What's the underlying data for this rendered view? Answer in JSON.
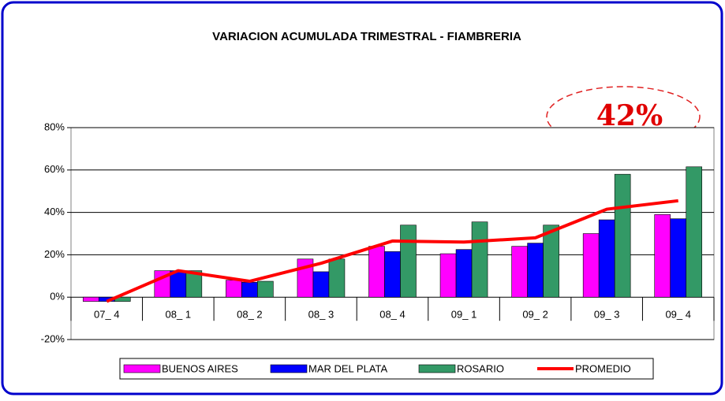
{
  "chart_data": {
    "type": "bar_line",
    "title": "VARIACION ACUMULADA TRIMESTRAL   -   FIAMBRERIA",
    "annotation": "42%",
    "categories": [
      "07_ 4",
      "08_ 1",
      "08_ 2",
      "08_ 3",
      "08_ 4",
      "09_ 1",
      "09_ 2",
      "09_ 3",
      "09_ 4"
    ],
    "series": [
      {
        "name": "BUENOS AIRES",
        "type": "bar",
        "color": "#ff00ff",
        "values": [
          -2,
          12.5,
          8,
          18,
          24,
          20.5,
          24,
          30,
          39
        ]
      },
      {
        "name": "MAR DEL PLATA",
        "type": "bar",
        "color": "#0000ff",
        "values": [
          -2,
          12.5,
          7,
          12,
          21.5,
          22.5,
          25.5,
          36.5,
          37
        ]
      },
      {
        "name": "ROSARIO",
        "type": "bar",
        "color": "#339966",
        "values": [
          -2,
          12.5,
          7.5,
          18,
          34,
          35.5,
          34,
          58,
          61.5
        ]
      },
      {
        "name": "PROMEDIO",
        "type": "line",
        "color": "#ff0000",
        "values": [
          -2,
          12.5,
          7.5,
          16,
          26.5,
          26,
          28,
          41.5,
          45.5
        ]
      }
    ],
    "ylim": [
      -20,
      80
    ],
    "yticks": [
      {
        "value": -20,
        "label": "-20%"
      },
      {
        "value": 0,
        "label": "0%"
      },
      {
        "value": 20,
        "label": "20%"
      },
      {
        "value": 40,
        "label": "40%"
      },
      {
        "value": 60,
        "label": "60%"
      },
      {
        "value": 80,
        "label": "80%"
      }
    ],
    "grid": true,
    "legend": "bottom"
  }
}
